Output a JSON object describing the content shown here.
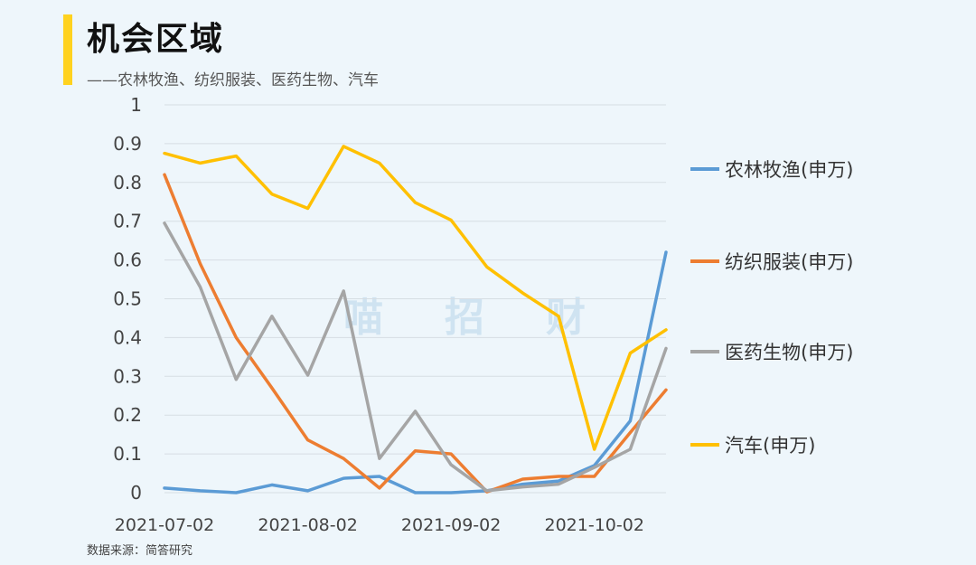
{
  "header": {
    "title": "机会区域",
    "subtitle": "——农林牧渔、纺织服装、医药生物、汽车"
  },
  "watermark": [
    "喵",
    "招",
    "财"
  ],
  "footer": {
    "source": "数据来源：简答研究"
  },
  "chart_data": {
    "type": "line",
    "title": "机会区域",
    "subtitle": "——农林牧渔、纺织服装、医药生物、汽车",
    "xlabel": "",
    "ylabel": "",
    "ylim": [
      0,
      1
    ],
    "yticks": [
      "0",
      "0.1",
      "0.2",
      "0.3",
      "0.4",
      "0.5",
      "0.6",
      "0.7",
      "0.8",
      "0.9",
      "1"
    ],
    "xticks": [
      "2021-07-02",
      "2021-08-02",
      "2021-09-02",
      "2021-10-02"
    ],
    "x": [
      "2021-07-02",
      "2021-07-09",
      "2021-07-16",
      "2021-07-23",
      "2021-07-30",
      "2021-08-06",
      "2021-08-13",
      "2021-08-20",
      "2021-08-27",
      "2021-09-03",
      "2021-09-10",
      "2021-09-17",
      "2021-09-24",
      "2021-10-01",
      "2021-10-08"
    ],
    "grid": true,
    "legend": "right",
    "series": [
      {
        "name": "农林牧渔(申万)",
        "color": "#5b9bd5",
        "values": [
          0.012,
          0.005,
          0.0,
          0.02,
          0.005,
          0.037,
          0.042,
          0.0,
          0.0,
          0.005,
          0.022,
          0.03,
          0.07,
          0.185,
          0.62
        ]
      },
      {
        "name": "纺织服装(申万)",
        "color": "#ed7d31",
        "values": [
          0.82,
          0.59,
          0.4,
          0.27,
          0.136,
          0.088,
          0.012,
          0.108,
          0.1,
          0.002,
          0.035,
          0.042,
          0.042,
          0.155,
          0.265
        ]
      },
      {
        "name": "医药生物(申万)",
        "color": "#a5a5a5",
        "values": [
          0.695,
          0.53,
          0.292,
          0.455,
          0.303,
          0.52,
          0.088,
          0.21,
          0.072,
          0.005,
          0.015,
          0.022,
          0.065,
          0.112,
          0.372
        ]
      },
      {
        "name": "汽车(申万)",
        "color": "#ffc000",
        "values": [
          0.875,
          0.85,
          0.868,
          0.77,
          0.733,
          0.893,
          0.85,
          0.748,
          0.703,
          0.582,
          0.515,
          0.455,
          0.112,
          0.36,
          0.42
        ]
      }
    ]
  }
}
